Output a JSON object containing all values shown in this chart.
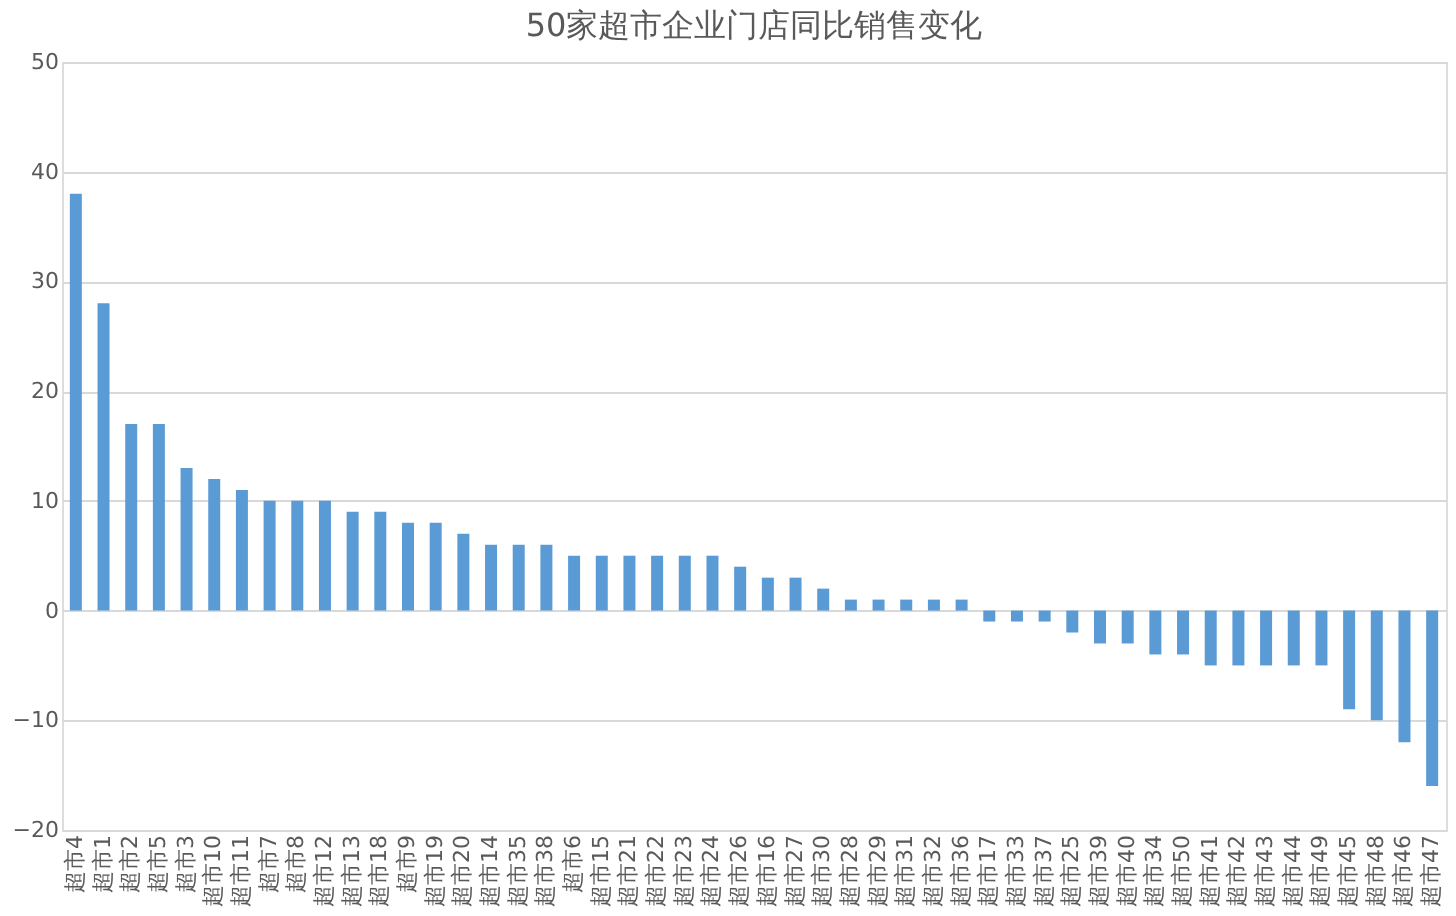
{
  "chart_data": {
    "type": "bar",
    "title": "50家超市企业门店同比销售变化",
    "categories": [
      "超市4",
      "超市1",
      "超市2",
      "超市5",
      "超市3",
      "超市10",
      "超市11",
      "超市7",
      "超市8",
      "超市12",
      "超市13",
      "超市18",
      "超市9",
      "超市19",
      "超市20",
      "超市14",
      "超市35",
      "超市38",
      "超市6",
      "超市15",
      "超市21",
      "超市22",
      "超市23",
      "超市24",
      "超市26",
      "超市16",
      "超市27",
      "超市30",
      "超市28",
      "超市29",
      "超市31",
      "超市32",
      "超市36",
      "超市17",
      "超市33",
      "超市37",
      "超市25",
      "超市39",
      "超市40",
      "超市34",
      "超市50",
      "超市41",
      "超市42",
      "超市43",
      "超市44",
      "超市49",
      "超市45",
      "超市48",
      "超市46",
      "超市47"
    ],
    "values": [
      38,
      28,
      17,
      17,
      13,
      12,
      11,
      10,
      10,
      10,
      9,
      9,
      8,
      8,
      7,
      6,
      6,
      6,
      5,
      5,
      5,
      5,
      5,
      5,
      4,
      3,
      3,
      2,
      1,
      1,
      1,
      1,
      1,
      -1,
      -1,
      -1,
      -2,
      -3,
      -3,
      -4,
      -4,
      -5,
      -5,
      -5,
      -5,
      -5,
      -9,
      -10,
      -12,
      -16
    ],
    "color": "#5b9bd5",
    "ylim": [
      -20,
      50
    ],
    "yticks": [
      -20,
      -10,
      0,
      10,
      20,
      30,
      40,
      50
    ],
    "grid": "y"
  }
}
